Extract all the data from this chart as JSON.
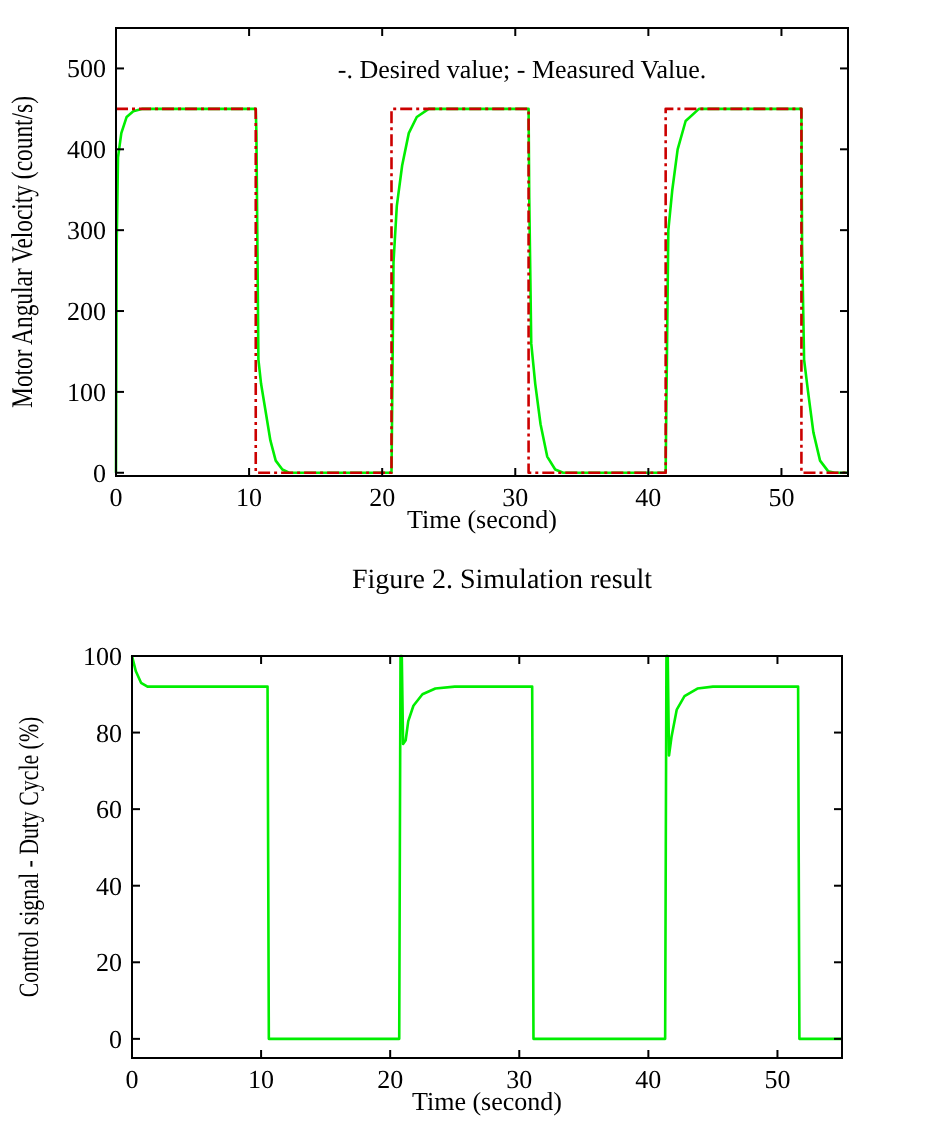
{
  "chart_data": [
    {
      "type": "line",
      "xlabel": "Time (second)",
      "ylabel": "Motor Angular Velocity (count/s)",
      "annotations": [
        "-. Desired value; - Measured Value.",
        "Figure 2.  Simulation result"
      ],
      "xlim": [
        0,
        55
      ],
      "ylim": [
        -4,
        550
      ],
      "xticks": [
        0,
        10,
        20,
        30,
        40,
        50
      ],
      "yticks": [
        0,
        100,
        200,
        300,
        400,
        500
      ],
      "grid": false,
      "series": [
        {
          "color": "#00ee00",
          "line_style": "solid",
          "x": [
            0,
            0.05,
            0.15,
            0.4,
            0.8,
            1.3,
            2,
            10.5,
            10.55,
            10.7,
            10.9,
            11.2,
            11.6,
            12,
            12.5,
            13,
            20.7,
            20.75,
            20.85,
            21.1,
            21.5,
            22,
            22.6,
            23.5,
            31,
            31.05,
            31.2,
            31.5,
            31.9,
            32.4,
            33,
            33.6,
            41.3,
            41.35,
            41.5,
            41.8,
            42.2,
            42.8,
            43.8,
            51.5,
            51.55,
            51.7,
            52,
            52.4,
            52.9,
            53.5,
            54,
            55
          ],
          "values": [
            0,
            280,
            390,
            420,
            440,
            447,
            450,
            450,
            420,
            140,
            110,
            80,
            40,
            15,
            4,
            0,
            0,
            80,
            260,
            330,
            380,
            420,
            440,
            450,
            450,
            340,
            160,
            110,
            60,
            20,
            4,
            0,
            0,
            80,
            300,
            350,
            400,
            435,
            450,
            450,
            280,
            140,
            100,
            50,
            15,
            2,
            0,
            0
          ]
        },
        {
          "color": "#cc0000",
          "line_style": "dashed",
          "x": [
            0,
            10.5,
            10.5,
            20.7,
            20.7,
            31,
            31,
            41.3,
            41.3,
            51.5,
            51.5,
            55
          ],
          "values": [
            450,
            450,
            0,
            0,
            450,
            450,
            0,
            0,
            450,
            450,
            0,
            0
          ]
        }
      ]
    },
    {
      "type": "line",
      "xlabel": "Time (second)",
      "ylabel": "Control signal - Duty Cycle (%)",
      "xlim": [
        0,
        55
      ],
      "ylim": [
        -5,
        100
      ],
      "xticks": [
        0,
        10,
        20,
        30,
        40,
        50
      ],
      "yticks": [
        0,
        20,
        40,
        60,
        80,
        100
      ],
      "grid": false,
      "series": [
        {
          "color": "#00ee00",
          "line_style": "solid",
          "x": [
            0,
            0.3,
            0.7,
            1.2,
            10.5,
            10.55,
            10.6,
            20.7,
            20.75,
            20.8,
            20.9,
            21,
            21.2,
            21.4,
            21.8,
            22.5,
            23.5,
            25,
            31,
            31.05,
            31.1,
            41.3,
            41.35,
            41.4,
            41.5,
            41.6,
            41.8,
            42.2,
            42.8,
            43.8,
            45,
            51.6,
            51.65,
            51.7,
            55
          ],
          "values": [
            100,
            96,
            93,
            92,
            92,
            46,
            0,
            0,
            50,
            100,
            100,
            77,
            78,
            83,
            87,
            90,
            91.5,
            92,
            92,
            46,
            0,
            0,
            50,
            100,
            100,
            74,
            79,
            86,
            89.5,
            91.5,
            92,
            92,
            46,
            0,
            0
          ]
        }
      ]
    }
  ]
}
